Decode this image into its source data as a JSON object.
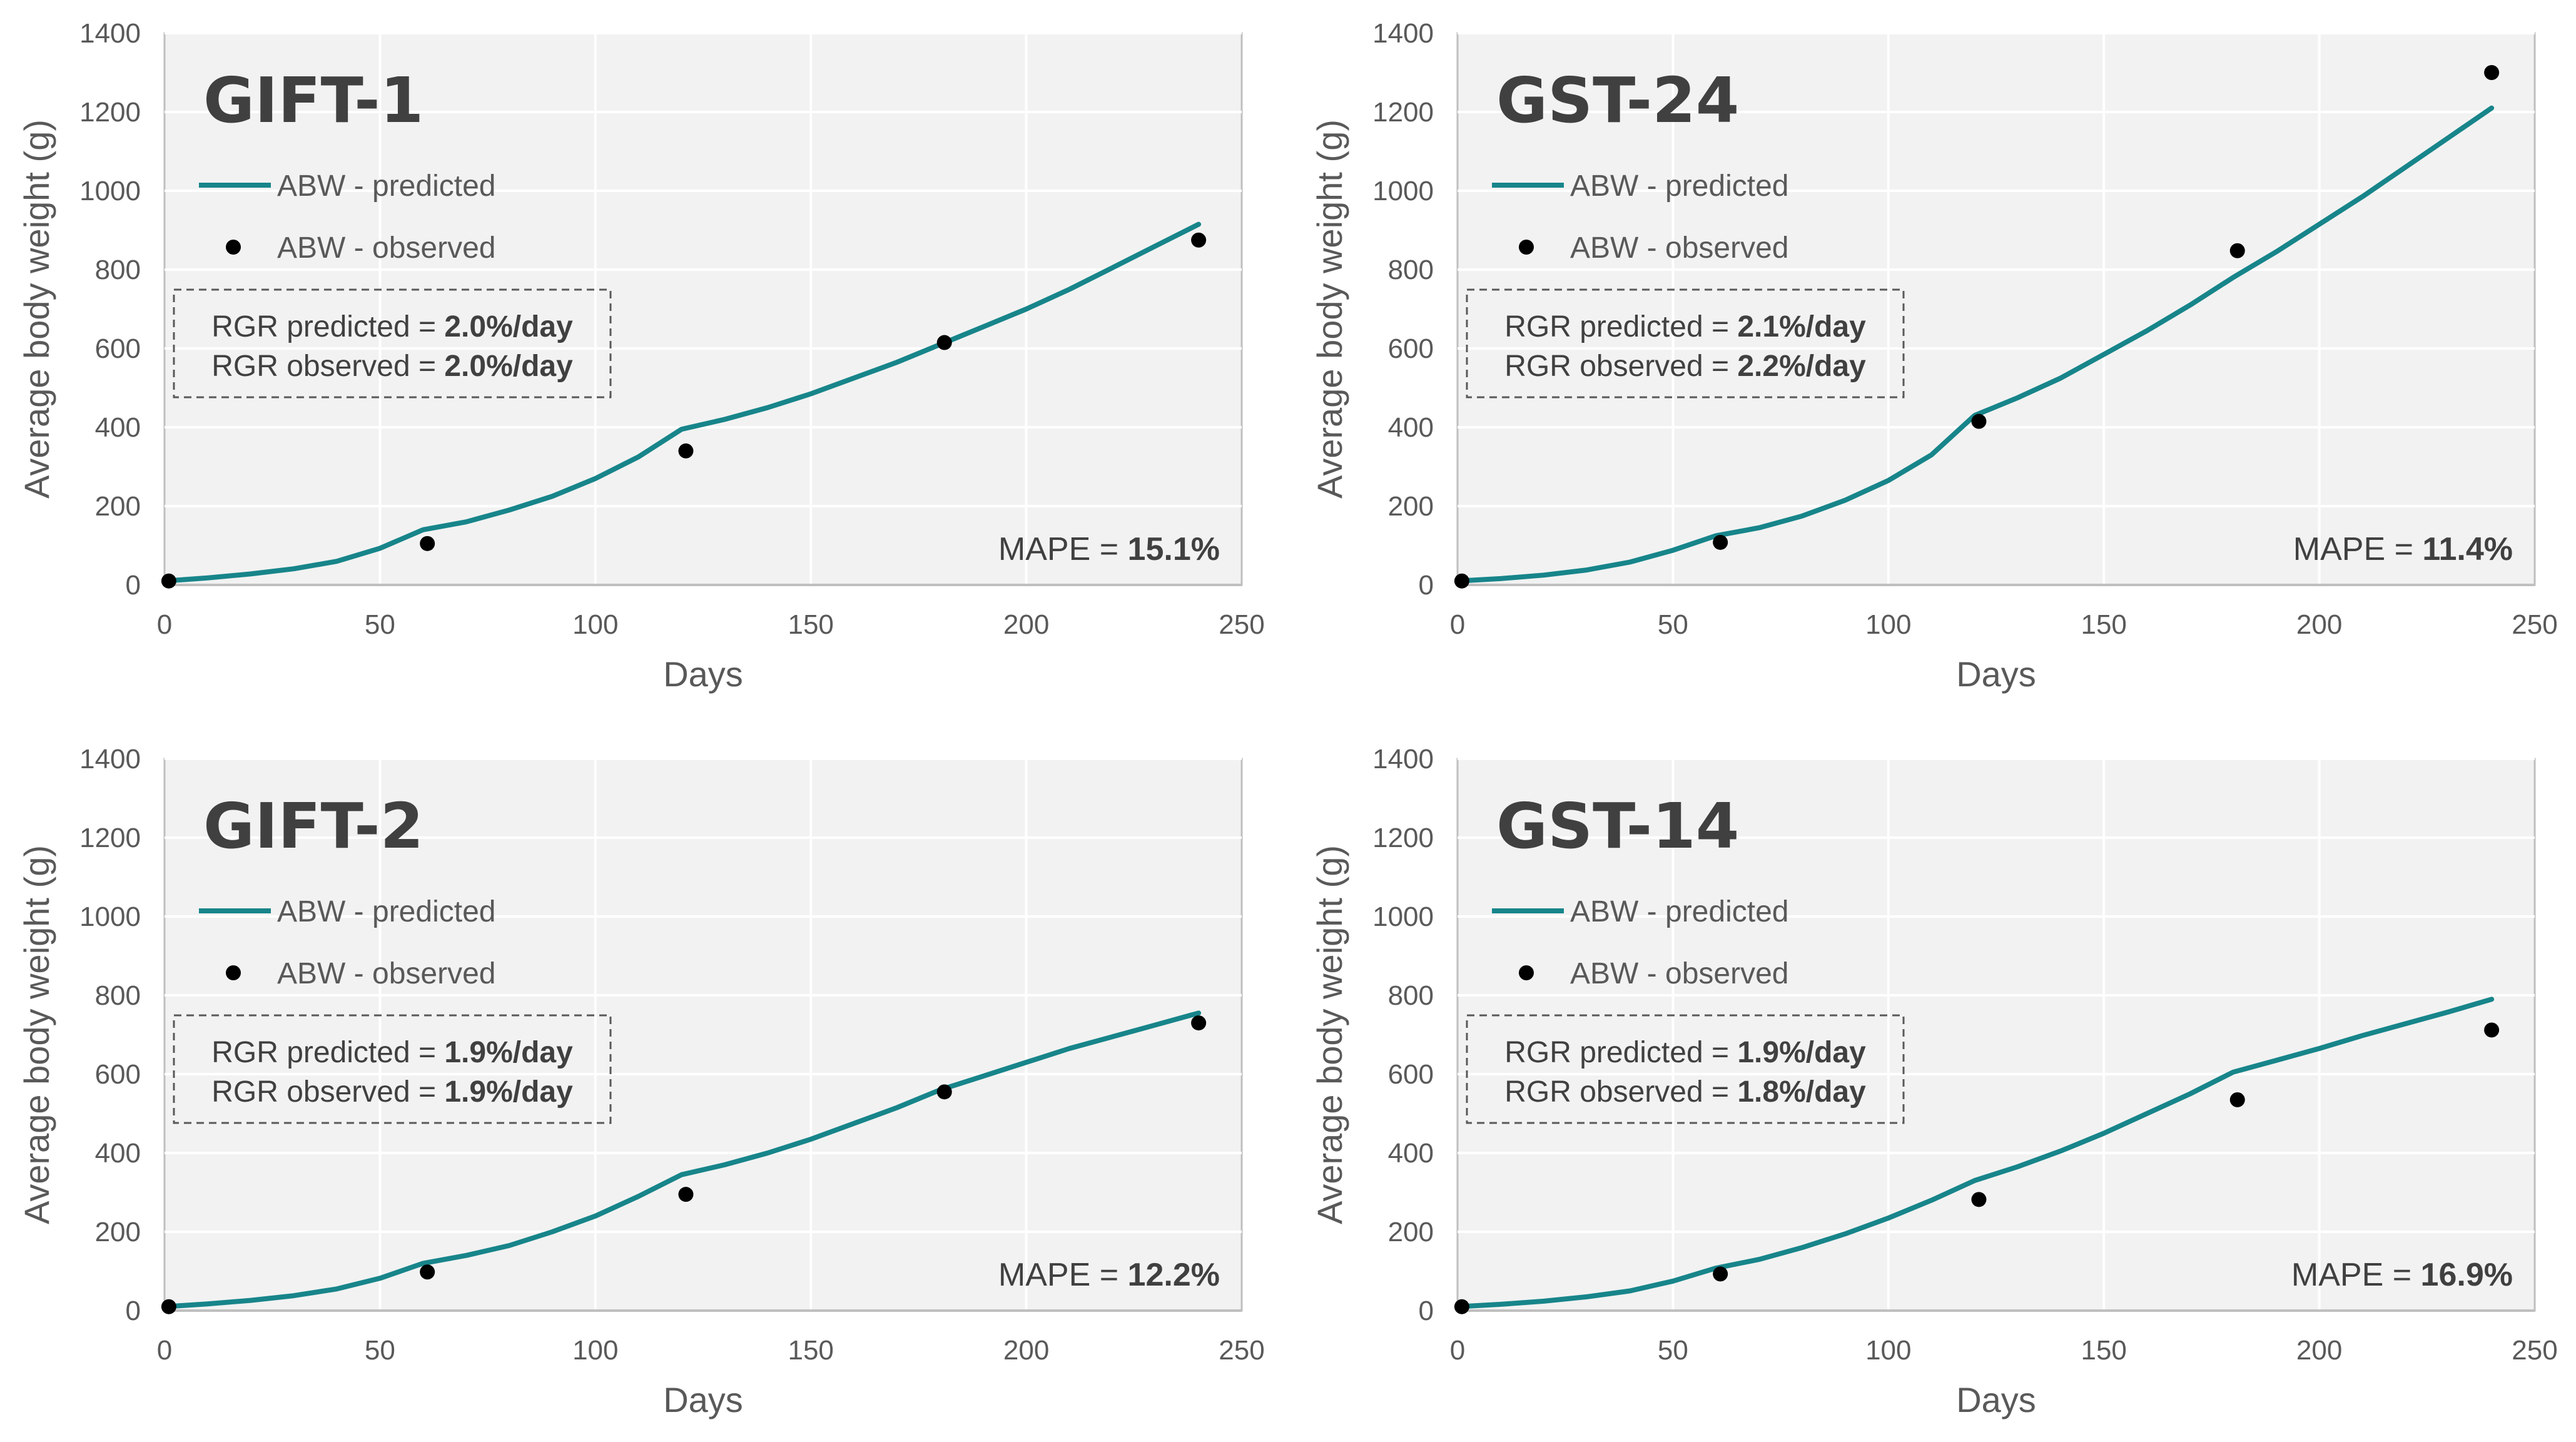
{
  "chart_data": [
    {
      "type": "line",
      "title": "GIFT-1",
      "xlabel": "Days",
      "ylabel": "Average body weight (g)",
      "xlim": [
        0,
        250
      ],
      "ylim": [
        0,
        1400
      ],
      "xticks": [
        0,
        50,
        100,
        150,
        200,
        250
      ],
      "yticks": [
        0,
        200,
        400,
        600,
        800,
        1000,
        1200,
        1400
      ],
      "grid": true,
      "series": [
        {
          "name": "ABW - predicted",
          "kind": "line",
          "x": [
            0,
            10,
            20,
            30,
            40,
            50,
            60,
            70,
            80,
            90,
            100,
            110,
            120,
            130,
            140,
            150,
            160,
            170,
            180,
            190,
            200,
            210,
            220,
            230,
            240
          ],
          "y": [
            10,
            18,
            28,
            41,
            60,
            93,
            140,
            160,
            190,
            225,
            270,
            325,
            395,
            420,
            450,
            485,
            525,
            565,
            610,
            655,
            700,
            750,
            805,
            860,
            915
          ]
        },
        {
          "name": "ABW - observed",
          "kind": "scatter",
          "x": [
            1,
            61,
            121,
            181,
            240
          ],
          "y": [
            10,
            105,
            340,
            615,
            875
          ]
        }
      ],
      "legend": [
        "ABW - predicted",
        "ABW - observed"
      ],
      "rgr": {
        "predicted_label": "RGR predicted = ",
        "predicted_value": "2.0%/day",
        "observed_label": "RGR observed = ",
        "observed_value": "2.0%/day"
      },
      "mape": {
        "label": "MAPE = ",
        "value": "15.1%"
      }
    },
    {
      "type": "line",
      "title": "GST-24",
      "xlabel": "Days",
      "ylabel": "Average body weight (g)",
      "xlim": [
        0,
        250
      ],
      "ylim": [
        0,
        1400
      ],
      "xticks": [
        0,
        50,
        100,
        150,
        200,
        250
      ],
      "yticks": [
        0,
        200,
        400,
        600,
        800,
        1000,
        1200,
        1400
      ],
      "grid": true,
      "series": [
        {
          "name": "ABW - predicted",
          "kind": "line",
          "x": [
            0,
            10,
            20,
            30,
            40,
            50,
            60,
            70,
            80,
            90,
            100,
            110,
            120,
            130,
            140,
            150,
            160,
            170,
            180,
            190,
            200,
            210,
            220,
            230,
            240
          ],
          "y": [
            10,
            16,
            25,
            38,
            58,
            88,
            125,
            145,
            175,
            215,
            265,
            330,
            430,
            475,
            525,
            585,
            645,
            710,
            780,
            845,
            915,
            985,
            1060,
            1135,
            1210
          ]
        },
        {
          "name": "ABW - observed",
          "kind": "scatter",
          "x": [
            1,
            61,
            121,
            181,
            240
          ],
          "y": [
            10,
            108,
            415,
            848,
            1300
          ]
        }
      ],
      "legend": [
        "ABW - predicted",
        "ABW - observed"
      ],
      "rgr": {
        "predicted_label": "RGR predicted = ",
        "predicted_value": "2.1%/day",
        "observed_label": "RGR observed = ",
        "observed_value": "2.2%/day"
      },
      "mape": {
        "label": "MAPE = ",
        "value": "11.4%"
      }
    },
    {
      "type": "line",
      "title": "GIFT-2",
      "xlabel": "Days",
      "ylabel": "Average body weight (g)",
      "xlim": [
        0,
        250
      ],
      "ylim": [
        0,
        1400
      ],
      "xticks": [
        0,
        50,
        100,
        150,
        200,
        250
      ],
      "yticks": [
        0,
        200,
        400,
        600,
        800,
        1000,
        1200,
        1400
      ],
      "grid": true,
      "series": [
        {
          "name": "ABW - predicted",
          "kind": "line",
          "x": [
            0,
            10,
            20,
            30,
            40,
            50,
            60,
            70,
            80,
            90,
            100,
            110,
            120,
            130,
            140,
            150,
            160,
            170,
            180,
            190,
            200,
            210,
            220,
            230,
            240
          ],
          "y": [
            10,
            17,
            26,
            38,
            55,
            82,
            120,
            140,
            165,
            200,
            240,
            290,
            345,
            370,
            400,
            435,
            475,
            515,
            560,
            595,
            630,
            665,
            695,
            725,
            755
          ]
        },
        {
          "name": "ABW - observed",
          "kind": "scatter",
          "x": [
            1,
            61,
            121,
            181,
            240
          ],
          "y": [
            10,
            98,
            295,
            555,
            730
          ]
        }
      ],
      "legend": [
        "ABW - predicted",
        "ABW - observed"
      ],
      "rgr": {
        "predicted_label": "RGR predicted = ",
        "predicted_value": "1.9%/day",
        "observed_label": "RGR observed = ",
        "observed_value": "1.9%/day"
      },
      "mape": {
        "label": "MAPE = ",
        "value": "12.2%"
      }
    },
    {
      "type": "line",
      "title": "GST-14",
      "xlabel": "Days",
      "ylabel": "Average body weight (g)",
      "xlim": [
        0,
        250
      ],
      "ylim": [
        0,
        1400
      ],
      "xticks": [
        0,
        50,
        100,
        150,
        200,
        250
      ],
      "yticks": [
        0,
        200,
        400,
        600,
        800,
        1000,
        1200,
        1400
      ],
      "grid": true,
      "series": [
        {
          "name": "ABW - predicted",
          "kind": "line",
          "x": [
            0,
            10,
            20,
            30,
            40,
            50,
            60,
            70,
            80,
            90,
            100,
            110,
            120,
            130,
            140,
            150,
            160,
            170,
            180,
            190,
            200,
            210,
            220,
            230,
            240
          ],
          "y": [
            10,
            16,
            24,
            35,
            50,
            75,
            108,
            130,
            160,
            195,
            235,
            280,
            330,
            365,
            405,
            450,
            500,
            550,
            605,
            635,
            665,
            698,
            728,
            758,
            790
          ]
        },
        {
          "name": "ABW - observed",
          "kind": "scatter",
          "x": [
            1,
            61,
            121,
            181,
            240
          ],
          "y": [
            10,
            93,
            282,
            535,
            712
          ]
        }
      ],
      "legend": [
        "ABW - predicted",
        "ABW - observed"
      ],
      "rgr": {
        "predicted_label": "RGR predicted = ",
        "predicted_value": "1.9%/day",
        "observed_label": "RGR observed = ",
        "observed_value": "1.8%/day"
      },
      "mape": {
        "label": "MAPE = ",
        "value": "16.9%"
      }
    }
  ],
  "colors": {
    "line": "#17858a",
    "marker": "#000000",
    "plot_background": "#f2f2f2",
    "grid": "#ffffff",
    "axis": "#bfbfbf",
    "box_border": "#595959"
  }
}
